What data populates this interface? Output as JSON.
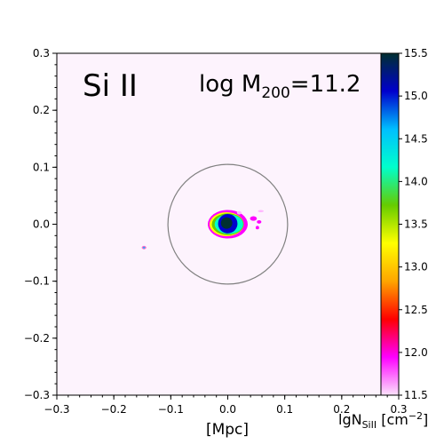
{
  "chart_data": {
    "type": "heatmap",
    "ion_label": "Si II",
    "mass_label": "log M",
    "mass_subscript": "200",
    "mass_value": "=11.2",
    "xlabel": "[Mpc]",
    "colorbar_label": "lgN",
    "colorbar_label_sub": "SiII",
    "colorbar_label_unit": " [cm",
    "colorbar_label_exp": "−2",
    "colorbar_label_close": "]",
    "xlim": [
      -0.3,
      0.3
    ],
    "ylim": [
      -0.3,
      0.3
    ],
    "x_ticks": [
      "−0.3",
      "−0.2",
      "−0.1",
      "0.0",
      "0.1",
      "0.2",
      "0.3"
    ],
    "y_ticks": [
      "0.3",
      "0.2",
      "0.1",
      "0.0",
      "−0.1",
      "−0.2",
      "−0.3"
    ],
    "colorbar_range": [
      11.5,
      15.5
    ],
    "colorbar_ticks": [
      "15.5",
      "15.0",
      "14.5",
      "14.0",
      "13.5",
      "13.0",
      "12.5",
      "12.0",
      "11.5"
    ],
    "colorbar_colors": [
      "#fbe3fb",
      "#ff00ff",
      "#ff0000",
      "#ffa500",
      "#ffff00",
      "#66cc00",
      "#00ffcc",
      "#00bfff",
      "#0000cd",
      "#003030"
    ],
    "virial_circle": {
      "center": [
        0.0,
        0.0
      ],
      "radius": 0.105
    },
    "background_color": "#fdf3fd",
    "blobs": [
      {
        "x": 0.0,
        "y": 0.0,
        "rx": 0.035,
        "ry": 0.025,
        "color": "#ff00ff"
      },
      {
        "x": -0.002,
        "y": 0.0,
        "rx": 0.03,
        "ry": 0.021,
        "color": "#ffff00"
      },
      {
        "x": 0.0,
        "y": 0.0,
        "rx": 0.028,
        "ry": 0.019,
        "color": "#66cc00"
      },
      {
        "x": 0.002,
        "y": 0.0,
        "rx": 0.025,
        "ry": 0.017,
        "color": "#00ffcc"
      },
      {
        "x": 0.0,
        "y": 0.001,
        "rx": 0.017,
        "ry": 0.017,
        "color": "#0000cd"
      },
      {
        "x": -0.002,
        "y": 0.002,
        "rx": 0.01,
        "ry": 0.01,
        "color": "#003030"
      },
      {
        "x": 0.045,
        "y": 0.01,
        "rx": 0.006,
        "ry": 0.004,
        "color": "#ff00ff"
      },
      {
        "x": 0.055,
        "y": 0.004,
        "rx": 0.004,
        "ry": 0.003,
        "color": "#ff00ff"
      },
      {
        "x": 0.058,
        "y": 0.023,
        "rx": 0.005,
        "ry": 0.002,
        "color": "#ffb6ff"
      },
      {
        "x": 0.052,
        "y": -0.006,
        "rx": 0.003,
        "ry": 0.003,
        "color": "#ff00ff"
      },
      {
        "x": 0.02,
        "y": 0.02,
        "rx": 0.004,
        "ry": 0.003,
        "color": "#ffb6ff"
      },
      {
        "x": -0.147,
        "y": -0.041,
        "rx": 0.004,
        "ry": 0.003,
        "color": "#ff66cc"
      },
      {
        "x": -0.147,
        "y": -0.041,
        "rx": 0.002,
        "ry": 0.0015,
        "color": "#00bfff"
      }
    ]
  }
}
